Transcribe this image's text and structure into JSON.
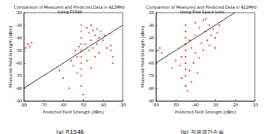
{
  "chart_data": [
    {
      "type": "scatter",
      "title": "Comparison of Measured and Predicted Data in 422MHz Using P1546",
      "x_label": "Predicted Field Strength [dBm]",
      "y_label": "Measured Field Strength [dBm]",
      "caption": "(a) P.1546",
      "xlim": [
        -80,
        -30
      ],
      "xticks": [
        -80,
        -70,
        -60,
        -50,
        -40,
        -30
      ],
      "ylim": [
        -90,
        -20
      ],
      "yticks": [
        -90,
        -80,
        -70,
        -60,
        -50,
        -40,
        -30,
        -20
      ],
      "grid": false,
      "series": [
        {
          "type": "scatter",
          "color": "#ff0000",
          "marker": "circle",
          "x": [
            -51,
            -51,
            -51,
            -51,
            -51,
            -51,
            -51,
            -51,
            -51,
            -51,
            -48,
            -47,
            -46,
            -45,
            -44,
            -43,
            -42,
            -41,
            -40,
            -46,
            -49,
            -47,
            -45,
            -53,
            -54,
            -55,
            -56,
            -53,
            -48,
            -46,
            -44,
            -42,
            -38,
            -36,
            -35,
            -35,
            -36,
            -78,
            -77,
            -76,
            -79,
            -62,
            -60,
            -57,
            -50,
            -39,
            -43,
            -52
          ],
          "values": [
            -30,
            -35,
            -40,
            -45,
            -50,
            -55,
            -60,
            -65,
            -70,
            -78,
            -32,
            -36,
            -30,
            -34,
            -38,
            -33,
            -40,
            -35,
            -42,
            -42,
            -45,
            -50,
            -48,
            -55,
            -50,
            -62,
            -58,
            -68,
            -58,
            -64,
            -55,
            -52,
            -48,
            -50,
            -55,
            -60,
            -46,
            -45,
            -47,
            -44,
            -48,
            -66,
            -72,
            -80,
            -85,
            -38,
            -45,
            -47
          ]
        },
        {
          "type": "line",
          "color": "#000000",
          "line_style": "solid",
          "x": [
            -80,
            -30
          ],
          "values": [
            -80,
            -30
          ]
        }
      ]
    },
    {
      "type": "scatter",
      "title": "Comparison of Measured and Predicted Data in 422MHz Using Free Space Loss",
      "x_label": "Predicted Field Strength [dBm]",
      "y_label": "Measured Field Strength [dBm]",
      "caption": "(b) 자유공간손실",
      "xlim": [
        -60,
        -10
      ],
      "xticks": [
        -60,
        -50,
        -40,
        -30,
        -20,
        -10
      ],
      "ylim": [
        -90,
        -20
      ],
      "yticks": [
        -90,
        -80,
        -70,
        -60,
        -50,
        -40,
        -30,
        -20
      ],
      "grid": false,
      "series": [
        {
          "type": "scatter",
          "color": "#ff0000",
          "marker": "circle",
          "x": [
            -45,
            -45,
            -45,
            -45,
            -45,
            -45,
            -45,
            -45,
            -45,
            -45,
            -40,
            -38,
            -36,
            -35,
            -33,
            -32,
            -31,
            -30,
            -34,
            -37,
            -42,
            -40,
            -38,
            -47,
            -48,
            -43,
            -41,
            -39,
            -36,
            -33,
            -30,
            -29,
            -28,
            -50,
            -52,
            -58,
            -59,
            -57,
            -47,
            -42,
            -44,
            -35,
            -40,
            -43
          ],
          "values": [
            -30,
            -35,
            -40,
            -45,
            -50,
            -55,
            -60,
            -65,
            -70,
            -78,
            -28,
            -32,
            -26,
            -35,
            -30,
            -38,
            -33,
            -40,
            -42,
            -44,
            -48,
            -52,
            -56,
            -55,
            -62,
            -66,
            -60,
            -68,
            -50,
            -46,
            -48,
            -36,
            -30,
            -58,
            -64,
            -48,
            -50,
            -52,
            -72,
            -75,
            -82,
            -25,
            -38,
            -42
          ]
        },
        {
          "type": "line",
          "color": "#000000",
          "line_style": "solid",
          "x": [
            -60,
            -20
          ],
          "values": [
            -60,
            -20
          ]
        }
      ]
    }
  ]
}
